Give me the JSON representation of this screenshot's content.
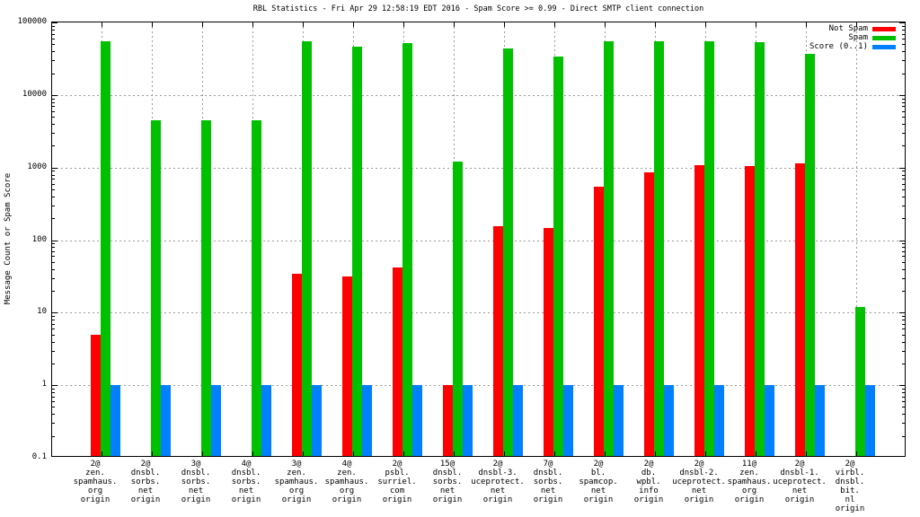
{
  "chart_data": {
    "type": "bar",
    "title": "RBL Statistics - Fri Apr 29 12:58:19 EDT 2016 - Spam Score >= 0.99 - Direct SMTP client connection",
    "ylabel": "Message Count or Spam Score",
    "xlabel": "",
    "y_scale": "log",
    "ylim": [
      0.1,
      100000
    ],
    "y_tick_labels": [
      "100000",
      "10000",
      "1000",
      "100",
      "10",
      "1",
      "0.1"
    ],
    "grid": true,
    "legend_position": "top-right",
    "categories": [
      [
        "2@",
        "zen.",
        "spamhaus.",
        "org",
        "origin"
      ],
      [
        "2@",
        "dnsbl.",
        "sorbs.",
        "net",
        "origin"
      ],
      [
        "3@",
        "dnsbl.",
        "sorbs.",
        "net",
        "origin"
      ],
      [
        "4@",
        "dnsbl.",
        "sorbs.",
        "net",
        "origin"
      ],
      [
        "3@",
        "zen.",
        "spamhaus.",
        "org",
        "origin"
      ],
      [
        "4@",
        "zen.",
        "spamhaus.",
        "org",
        "origin"
      ],
      [
        "2@",
        "psbl.",
        "surriel.",
        "com",
        "origin"
      ],
      [
        "15@",
        "dnsbl.",
        "sorbs.",
        "net",
        "origin"
      ],
      [
        "2@",
        "dnsbl-3.",
        "uceprotect.",
        "net",
        "origin"
      ],
      [
        "7@",
        "dnsbl.",
        "sorbs.",
        "net",
        "origin"
      ],
      [
        "2@",
        "bl.",
        "spamcop.",
        "net",
        "origin"
      ],
      [
        "2@",
        "db.",
        "wpbl.",
        "info",
        "origin"
      ],
      [
        "2@",
        "dnsbl-2.",
        "uceprotect.",
        "net",
        "origin"
      ],
      [
        "11@",
        "zen.",
        "spamhaus.",
        "org",
        "origin"
      ],
      [
        "2@",
        "dnsbl-1.",
        "uceprotect.",
        "net",
        "origin"
      ],
      [
        "2@",
        "virbl.",
        "dnsbl.",
        "bit.",
        "nl",
        "origin"
      ]
    ],
    "series": [
      {
        "name": "Not Spam",
        "color": "#ff0000",
        "values": [
          5,
          0,
          0,
          0,
          34,
          32,
          42,
          1,
          155,
          145,
          550,
          860,
          1090,
          1050,
          1150,
          0
        ]
      },
      {
        "name": "Spam",
        "color": "#00c000",
        "values": [
          55000,
          4500,
          4500,
          4500,
          55000,
          47000,
          52000,
          1200,
          44000,
          34000,
          55000,
          55000,
          55000,
          54000,
          37000,
          12
        ]
      },
      {
        "name": "Score (0..1)",
        "color": "#0080ff",
        "values": [
          1,
          1,
          1,
          1,
          1,
          1,
          1,
          1,
          1,
          1,
          1,
          1,
          1,
          1,
          1,
          1
        ]
      }
    ]
  }
}
